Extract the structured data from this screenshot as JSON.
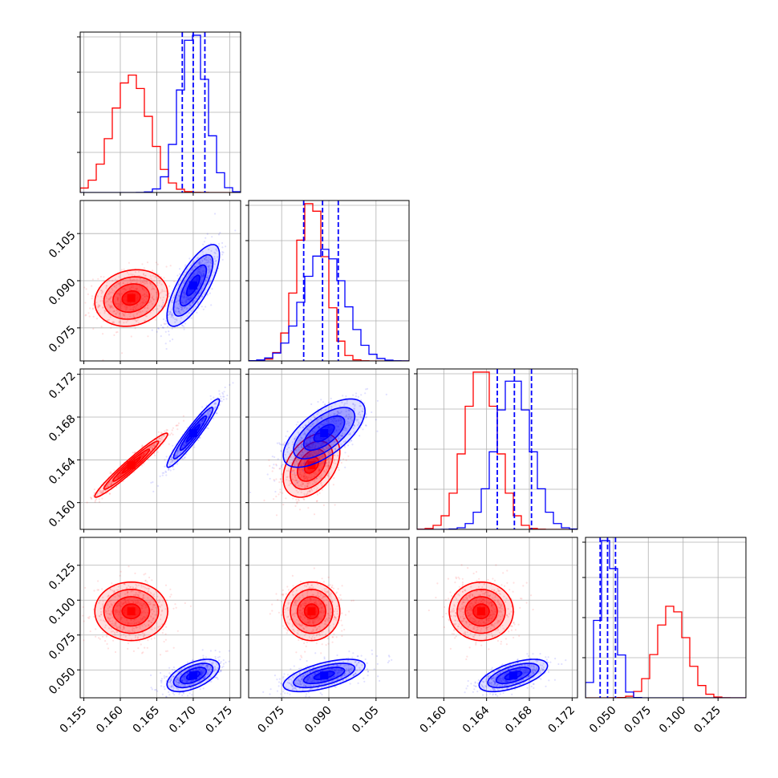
{
  "chart_data": {
    "type": "scatter",
    "layout": "corner-plot",
    "grid": true,
    "series": [
      {
        "name": "",
        "color": "#ff0000",
        "mean": [
          0.1615,
          0.0845,
          0.1635,
          0.092
        ],
        "std": [
          0.0025,
          0.0045,
          0.0015,
          0.0105
        ],
        "corr": [
          [
            1,
            0.15,
            0.97,
            0
          ],
          [
            0.15,
            1,
            0.4,
            0
          ],
          [
            0.97,
            0.4,
            1,
            0
          ],
          [
            0,
            0,
            0,
            1
          ]
        ]
      },
      {
        "name": "",
        "color": "#0000ff",
        "mean": [
          0.17,
          0.0885,
          0.1665,
          0.046
        ],
        "std": [
          0.0018,
          0.0065,
          0.0016,
          0.0058
        ],
        "corr": [
          [
            1,
            0.75,
            0.95,
            0.55
          ],
          [
            0.75,
            1,
            0.65,
            0.6
          ],
          [
            0.95,
            0.65,
            1,
            0.6
          ],
          [
            0.55,
            0.6,
            0.6,
            1
          ]
        ]
      }
    ],
    "quantile_lines": {
      "color": "#0000ff",
      "values": [
        [
          0.1685,
          0.17,
          0.1716
        ],
        [
          0.082,
          0.088,
          0.093
        ],
        [
          0.165,
          0.1666,
          0.1682
        ],
        [
          0.0405,
          0.0458,
          0.0515
        ]
      ]
    },
    "axes": [
      {
        "range": [
          0.1545,
          0.1765
        ],
        "ticks": [
          0.155,
          0.16,
          0.165,
          0.17,
          0.175
        ],
        "tick_labels": [
          "0.155",
          "0.160",
          "0.165",
          "0.170",
          "0.175"
        ]
      },
      {
        "range": [
          0.0645,
          0.1155
        ],
        "ticks": [
          0.075,
          0.09,
          0.105
        ],
        "tick_labels": [
          "0.075",
          "0.090",
          "0.105"
        ]
      },
      {
        "range": [
          0.1575,
          0.1725
        ],
        "ticks": [
          0.16,
          0.164,
          0.168,
          0.172
        ],
        "tick_labels": [
          "0.160",
          "0.164",
          "0.168",
          "0.172"
        ]
      },
      {
        "range": [
          0.03,
          0.145
        ],
        "ticks": [
          0.05,
          0.075,
          0.1,
          0.125
        ],
        "tick_labels": [
          "0.050",
          "0.075",
          "0.100",
          "0.125"
        ]
      }
    ]
  }
}
